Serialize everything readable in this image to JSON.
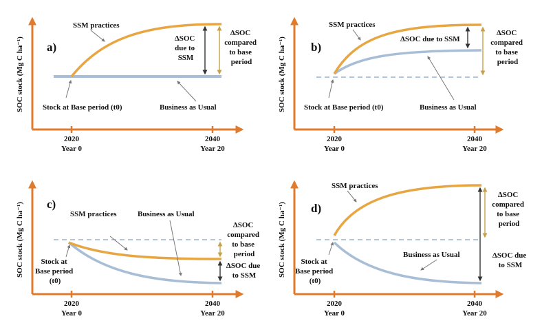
{
  "colors": {
    "axis": "#e07b2e",
    "ssm": "#e8a642",
    "bau": "#a8bdd6",
    "baseline_dash": "#a8bdd6",
    "arrow_dark": "#333333",
    "arrow_tan": "#c4a24a",
    "pointer": "#777777"
  },
  "y_axis_label": "SOC stock (Mg C ha⁻¹)",
  "x_ticks": {
    "start_year": "2020",
    "start_label": "Year 0",
    "end_year": "2040",
    "end_label": "Year 20"
  },
  "panels": {
    "a": {
      "letter": "a)",
      "ssm_label": "SSM practices",
      "bau_label": "Business as Usual",
      "stock_label": "Stock at Base period (t0)",
      "dsoc_ssm": [
        "ΔSOC",
        "due to",
        "SSM"
      ],
      "dsoc_base": [
        "ΔSOC",
        "compared",
        "to base",
        "period"
      ]
    },
    "b": {
      "letter": "b)",
      "ssm_label": "SSM practices",
      "bau_label": "Business as Usual",
      "stock_label": "Stock at Base period (t0)",
      "dsoc_ssm": [
        "ΔSOC due to SSM"
      ],
      "dsoc_base": [
        "ΔSOC",
        "compared",
        "to base",
        "period"
      ]
    },
    "c": {
      "letter": "c)",
      "ssm_label": "SSM practices",
      "bau_label": "Business as Usual",
      "stock_label": [
        "Stock at",
        "Base period",
        "(t0)"
      ],
      "dsoc_ssm": [
        "ΔSOC due",
        "to SSM"
      ],
      "dsoc_base": [
        "ΔSOC",
        "compared",
        "to base",
        "period"
      ]
    },
    "d": {
      "letter": "d)",
      "ssm_label": "SSM practices",
      "bau_label": "Business as Usual",
      "stock_label": [
        "Stock at",
        "Base period",
        "(t0)"
      ],
      "dsoc_ssm": [
        "ΔSOC due",
        "to SSM"
      ],
      "dsoc_base": [
        "ΔSOC",
        "compared",
        "to base",
        "period"
      ]
    }
  }
}
